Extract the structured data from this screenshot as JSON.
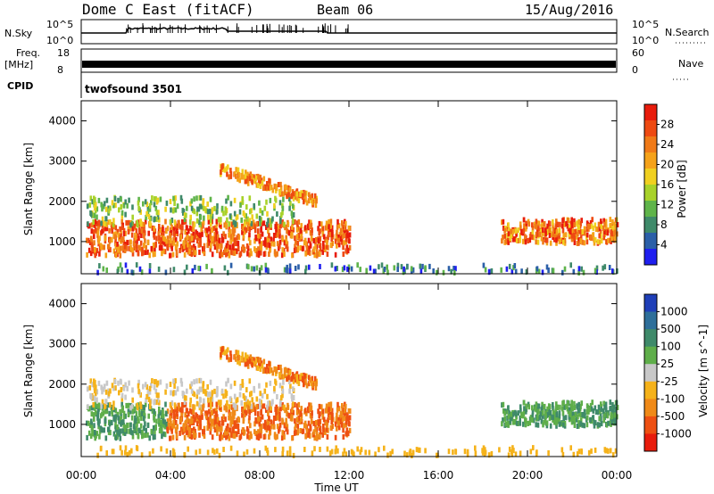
{
  "header": {
    "title": "Dome C East (fitACF)",
    "beam": "Beam 06",
    "date": "15/Aug/2016"
  },
  "panels": {
    "nsky": {
      "label": "N.Sky",
      "tick_top": "10^5",
      "tick_bottom": "10^0"
    },
    "nsearch": {
      "label": "N.Search",
      "tick_top": "10^5",
      "tick_bottom": "10^0"
    },
    "freq": {
      "label_line1": "Freq.",
      "label_line2": "[MHz]",
      "tick_top": "18",
      "tick_bottom": "8"
    },
    "nave": {
      "label": "Nave",
      "tick_top": "60",
      "tick_bottom": "0"
    },
    "cpid": {
      "label": "CPID",
      "value": "twofsound 3501"
    }
  },
  "axes": {
    "ylabel": "Slant Range [km]",
    "xlabel": "Time UT",
    "xticks": [
      "00:00",
      "04:00",
      "08:00",
      "12:00",
      "16:00",
      "20:00",
      "00:00"
    ],
    "yticks": [
      "1000",
      "2000",
      "3000",
      "4000"
    ]
  },
  "colorbars": {
    "power": {
      "label": "Power [dB]",
      "ticks": [
        "4",
        "8",
        "12",
        "16",
        "20",
        "24",
        "28"
      ],
      "colors": [
        "#1f1fef",
        "#2b5fa8",
        "#3f8a6a",
        "#5fb44a",
        "#a8d22a",
        "#f0d020",
        "#f5a21a",
        "#f07a18",
        "#ee4a12",
        "#e81c0c"
      ]
    },
    "velocity": {
      "label": "Velocity [m s^-1]",
      "ticks": [
        "1000",
        "500",
        "100",
        "25",
        "-25",
        "-100",
        "-500",
        "-1000"
      ],
      "colors": [
        "#1f3fb8",
        "#2e6f9a",
        "#3f8a6a",
        "#5fae4a",
        "#c8c8c8",
        "#f5b21a",
        "#f08a18",
        "#ee5012",
        "#e81c0c"
      ]
    }
  },
  "chart_data": {
    "type": "heatmap",
    "x_range_hours": [
      0,
      24
    ],
    "y_range_km": [
      200,
      4500
    ],
    "series": [
      {
        "name": "Power [dB]",
        "clim": [
          0,
          30
        ]
      },
      {
        "name": "Velocity [m s^-1]",
        "clim": [
          -1000,
          1000
        ]
      }
    ],
    "grid": false
  }
}
